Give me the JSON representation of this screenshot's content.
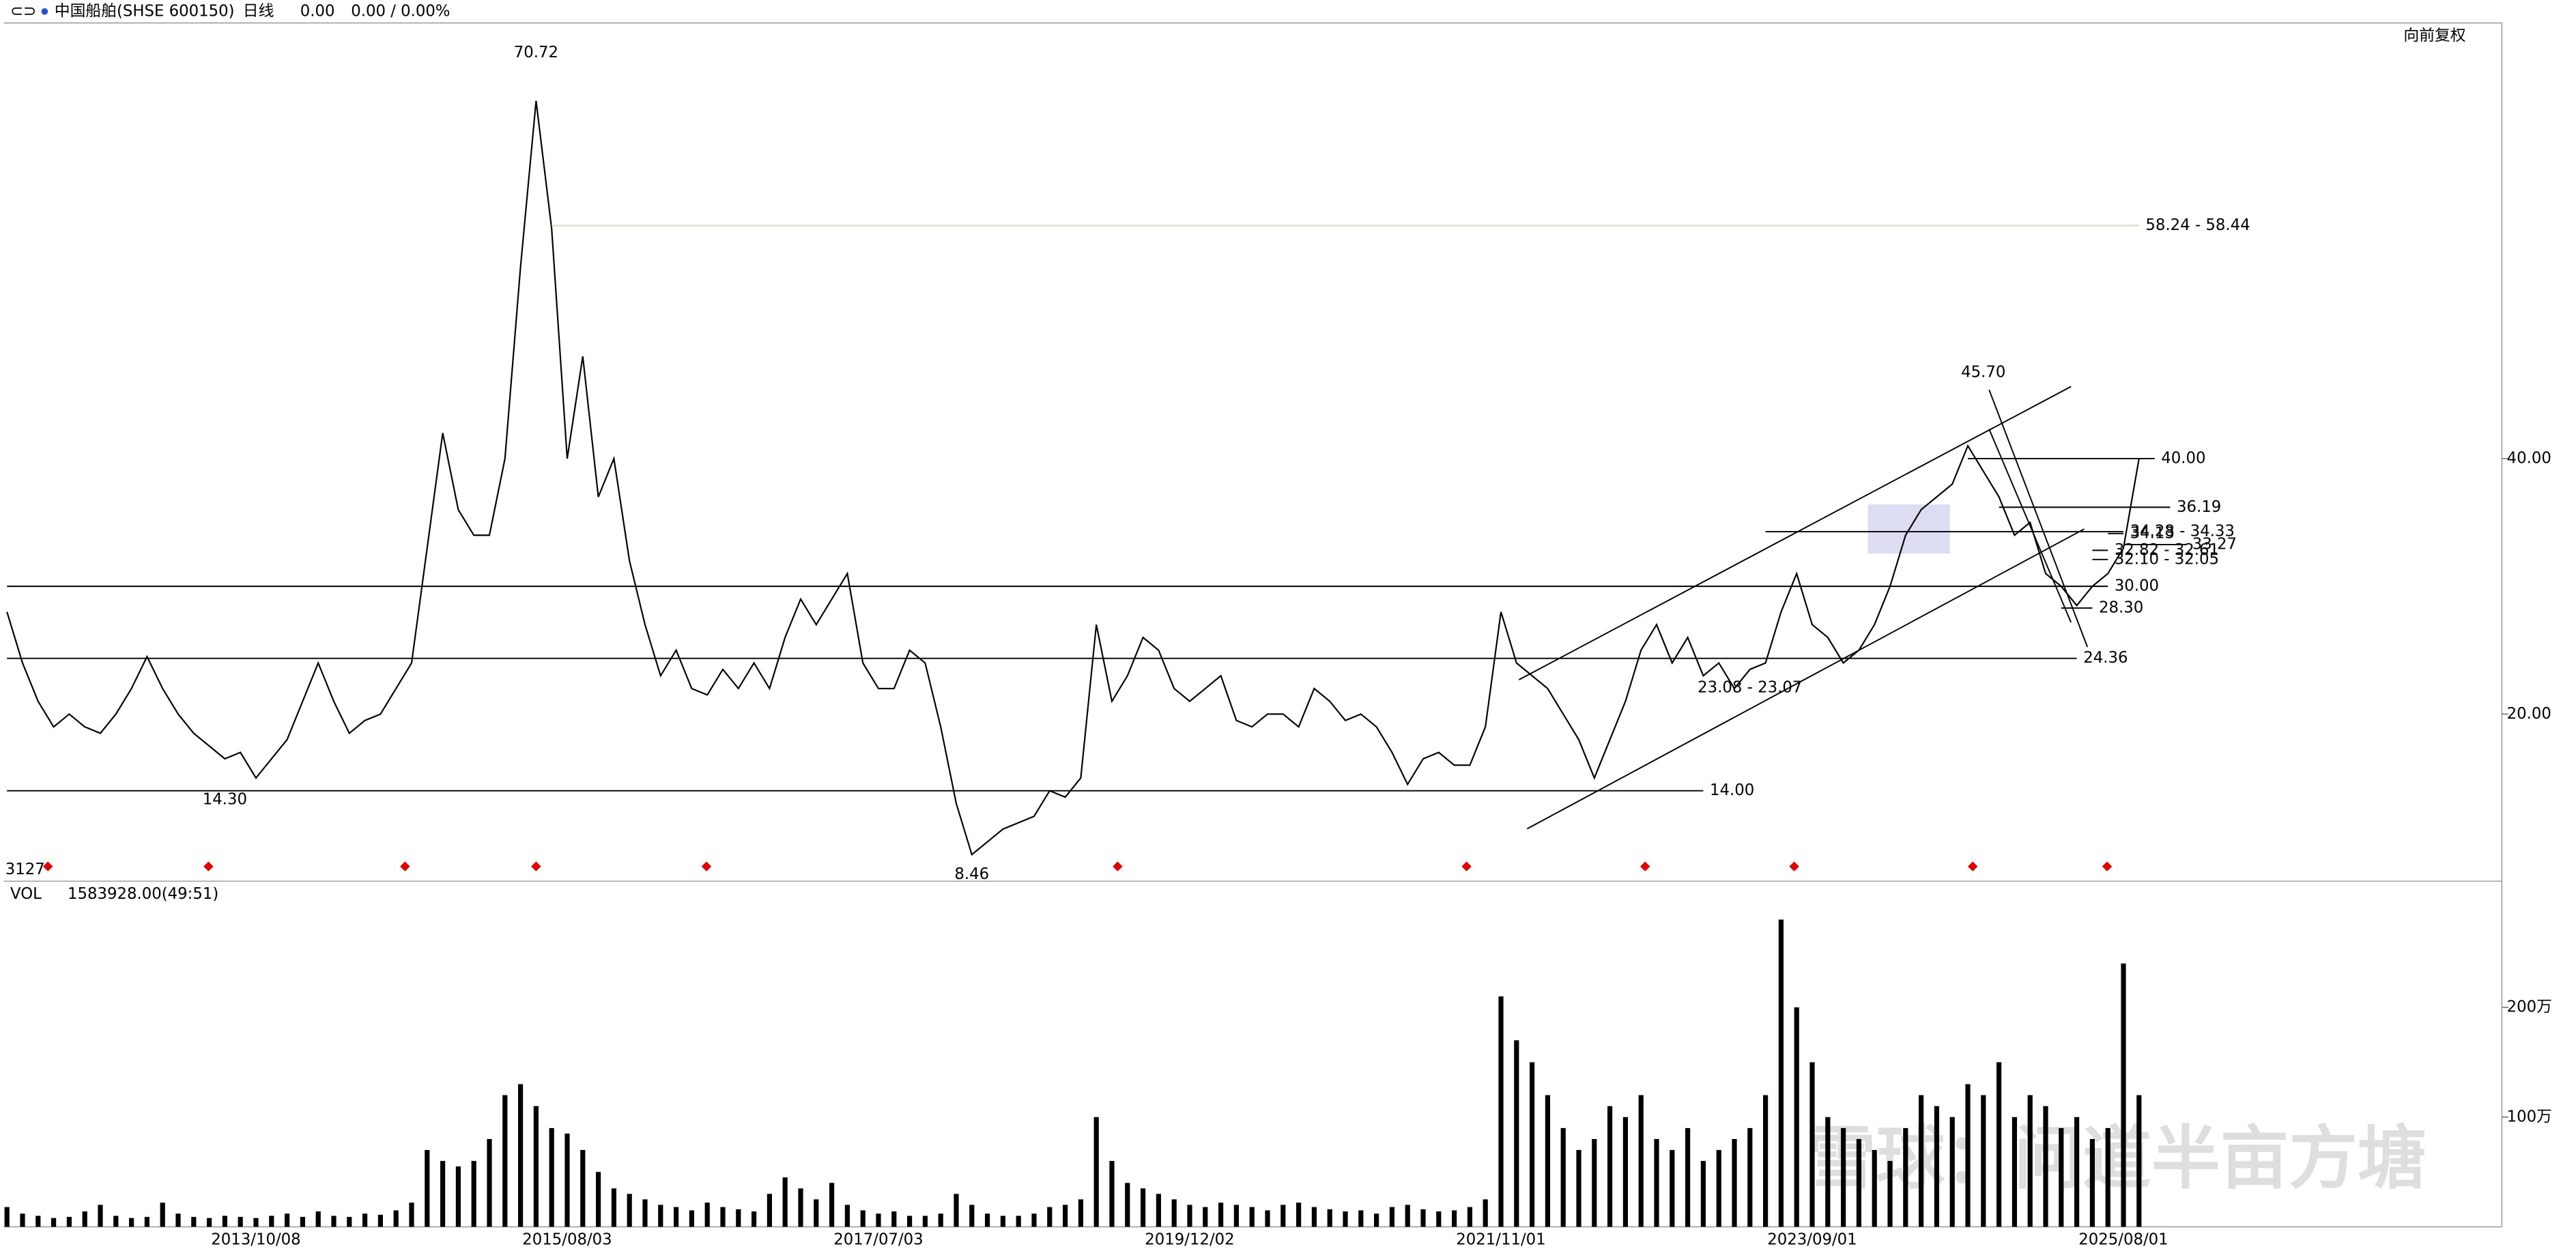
{
  "header": {
    "symbol": "中国船舶(SHSE 600150)",
    "period": "日线",
    "price": "0.00",
    "change": "0.00 / 0.00%",
    "adjust": "向前复权",
    "count": "3127",
    "watermark": "雪球：问道半亩方塘"
  },
  "chart_data": [
    {
      "type": "line",
      "color": "#000000",
      "categories": [
        null,
        null,
        null,
        null,
        null,
        null,
        null,
        null,
        null,
        null,
        null,
        null,
        null,
        null,
        null,
        null,
        "2013/10/08",
        null,
        null,
        null,
        null,
        null,
        null,
        null,
        null,
        null,
        null,
        null,
        null,
        null,
        null,
        null,
        null,
        null,
        null,
        null,
        "2015/08/03",
        null,
        null,
        null,
        null,
        null,
        null,
        null,
        null,
        null,
        null,
        null,
        null,
        null,
        null,
        null,
        null,
        null,
        null,
        null,
        "2017/07/03",
        null,
        null,
        null,
        null,
        null,
        null,
        null,
        null,
        null,
        null,
        null,
        null,
        null,
        null,
        null,
        null,
        null,
        null,
        null,
        "2019/12/02",
        null,
        null,
        null,
        null,
        null,
        null,
        null,
        null,
        null,
        null,
        null,
        null,
        null,
        null,
        null,
        null,
        null,
        null,
        null,
        "2021/11/01",
        null,
        null,
        null,
        null,
        null,
        null,
        null,
        null,
        null,
        null,
        null,
        null,
        null,
        null,
        null,
        null,
        null,
        null,
        null,
        "2023/09/01",
        null,
        null,
        null,
        null,
        null,
        null,
        null,
        null,
        null,
        null,
        null,
        null,
        null,
        null,
        null,
        null,
        null,
        null,
        null,
        "2025/08/01",
        null
      ],
      "series": [
        {
          "color": "#000000",
          "values": [
            28,
            24,
            21,
            19,
            20,
            19,
            18.5,
            20,
            22,
            24.5,
            22,
            20,
            18.5,
            17.5,
            16.5,
            17,
            15,
            16.5,
            18,
            21,
            24,
            21,
            18.5,
            19.5,
            20,
            22,
            24,
            33,
            42,
            36,
            34,
            34,
            40,
            55,
            68,
            58,
            40,
            48,
            37,
            40,
            32,
            27,
            23,
            25,
            22,
            21.5,
            23.5,
            22,
            24,
            22,
            26,
            29,
            27,
            29,
            31,
            24,
            22,
            22,
            25,
            24,
            19,
            13,
            9,
            10,
            11,
            11.5,
            12,
            14,
            13.5,
            15,
            27,
            21,
            23,
            26,
            25,
            22,
            21,
            22,
            23,
            19.5,
            19,
            20,
            20,
            19,
            22,
            21,
            19.5,
            20,
            19,
            17,
            14.5,
            16.5,
            17,
            16,
            16,
            19,
            28,
            24,
            23,
            22,
            20,
            18,
            15,
            18,
            21,
            25,
            27,
            24,
            26,
            23,
            24,
            22,
            23.5,
            24,
            28,
            31,
            27,
            26,
            24,
            25,
            27,
            30,
            34,
            36,
            37,
            38,
            41,
            39,
            37,
            34,
            35,
            31,
            30,
            28.5,
            30,
            31,
            33,
            40
          ]
        }
      ],
      "ylim": [
        6.92,
        74.1
      ],
      "yticks": [
        {
          "value": 20,
          "label": "20.00"
        },
        {
          "value": 40,
          "label": "40.00"
        }
      ],
      "levels": [
        {
          "value": 58.24,
          "label": "58.24 - 58.44",
          "color": "#d8d8c8",
          "span": [
            35,
            137
          ]
        },
        {
          "value": 40,
          "label": "40.00",
          "color": "#000000",
          "span": [
            126,
            138
          ]
        },
        {
          "value": 36.19,
          "label": "36.19",
          "color": "#000000",
          "span": [
            128,
            139
          ]
        },
        {
          "value": 34.13,
          "label": "34.13",
          "color": "#000000",
          "span": [
            135,
            136
          ]
        },
        {
          "value": 34.28,
          "label": "34.28 - 34.33",
          "color": "#000000",
          "span": [
            113,
            136
          ]
        },
        {
          "value": 33.27,
          "label": "33.27",
          "color": "#000000",
          "span": [
            136,
            140
          ]
        },
        {
          "value": 32.82,
          "label": "32.82 - 32.61",
          "color": "#000000",
          "span": [
            134,
            135
          ]
        },
        {
          "value": 32.1,
          "label": "32.10 - 32.05",
          "color": "#000000",
          "span": [
            134,
            135
          ]
        },
        {
          "value": 30,
          "label": "30.00",
          "color": "#000000",
          "span": [
            0,
            135
          ]
        },
        {
          "value": 28.3,
          "label": "28.30",
          "color": "#000000",
          "span": [
            132,
            134
          ]
        },
        {
          "value": 24.36,
          "label": "24.36",
          "color": "#000000",
          "span": [
            0,
            133
          ]
        },
        {
          "value": 14,
          "label": "14.00",
          "color": "#000000",
          "span": [
            0,
            109
          ]
        }
      ],
      "point_labels": [
        {
          "value": 70.72,
          "label": "70.72",
          "at": 34,
          "side": "above"
        },
        {
          "value": 45.7,
          "label": "45.70",
          "at": 127,
          "side": "above"
        },
        {
          "value": 14.3,
          "label": "14.30",
          "at": 14,
          "side": "below"
        },
        {
          "value": 8.46,
          "label": "8.46",
          "at": 62,
          "side": "below"
        },
        {
          "value": 23.08,
          "label": "23.08 - 23.07",
          "at": 112,
          "side": "below"
        }
      ]
    },
    {
      "type": "bar",
      "title": "VOL",
      "subtitle": "1583928.00(49:51)",
      "color": "#000000",
      "values": [
        18,
        12,
        10,
        8,
        9,
        14,
        20,
        10,
        8,
        9,
        22,
        12,
        9,
        8,
        10,
        9,
        8,
        10,
        12,
        9,
        14,
        10,
        9,
        12,
        11,
        15,
        22,
        70,
        60,
        55,
        60,
        80,
        120,
        130,
        110,
        90,
        85,
        70,
        50,
        35,
        30,
        25,
        20,
        18,
        15,
        22,
        18,
        16,
        14,
        30,
        45,
        35,
        25,
        40,
        20,
        15,
        12,
        14,
        10,
        10,
        12,
        30,
        20,
        12,
        10,
        10,
        12,
        18,
        20,
        25,
        100,
        60,
        40,
        35,
        30,
        25,
        20,
        18,
        22,
        20,
        18,
        15,
        20,
        22,
        18,
        16,
        14,
        15,
        12,
        18,
        20,
        16,
        14,
        15,
        18,
        25,
        210,
        170,
        150,
        120,
        90,
        70,
        80,
        110,
        100,
        120,
        80,
        70,
        90,
        60,
        70,
        80,
        90,
        120,
        280,
        200,
        150,
        100,
        90,
        80,
        70,
        60,
        90,
        120,
        110,
        100,
        130,
        120,
        150,
        100,
        120,
        110,
        90,
        100,
        80,
        90,
        240,
        120
      ],
      "ylim": [
        0,
        312
      ],
      "yticks": [
        {
          "value": 100,
          "label": "100万"
        },
        {
          "value": 200,
          "label": "200万"
        }
      ]
    }
  ]
}
